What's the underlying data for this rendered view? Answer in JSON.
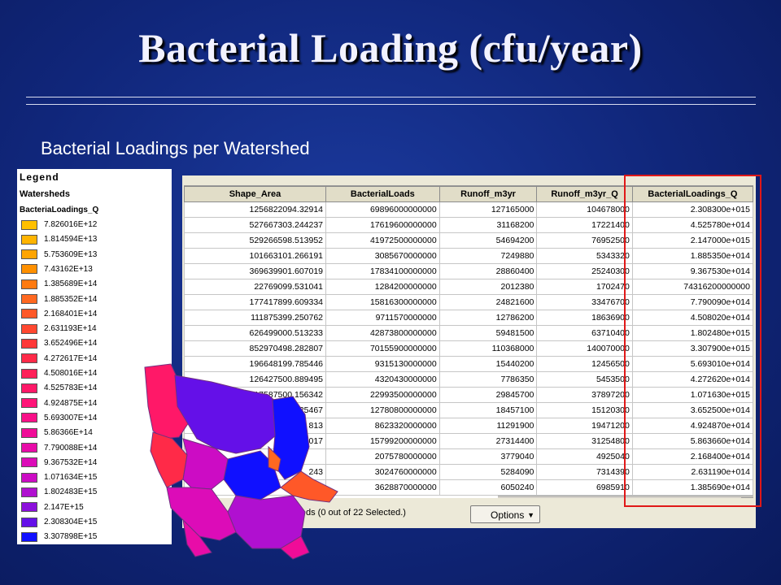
{
  "slide": {
    "title": "Bacterial Loading (cfu/year)",
    "subtitle": "Bacterial Loadings per Watershed"
  },
  "legend": {
    "title": "Legend",
    "layer": "Watersheds",
    "field": "BacteriaLoadings_Q",
    "items": [
      {
        "label": "7.826016E+12",
        "color": "#ffc000"
      },
      {
        "label": "1.814594E+13",
        "color": "#ffb400"
      },
      {
        "label": "5.753609E+13",
        "color": "#ffa400"
      },
      {
        "label": "7.43162E+13",
        "color": "#ff9000"
      },
      {
        "label": "1.385689E+14",
        "color": "#ff7a10"
      },
      {
        "label": "1.885352E+14",
        "color": "#ff6820"
      },
      {
        "label": "2.168401E+14",
        "color": "#ff5828"
      },
      {
        "label": "2.631193E+14",
        "color": "#ff4830"
      },
      {
        "label": "3.652496E+14",
        "color": "#ff3838"
      },
      {
        "label": "4.272617E+14",
        "color": "#ff2a48"
      },
      {
        "label": "4.508016E+14",
        "color": "#ff2058"
      },
      {
        "label": "4.525783E+14",
        "color": "#ff1868"
      },
      {
        "label": "4.924875E+14",
        "color": "#ff1478"
      },
      {
        "label": "5.693007E+14",
        "color": "#f81088"
      },
      {
        "label": "5.86366E+14",
        "color": "#f00c98"
      },
      {
        "label": "7.790088E+14",
        "color": "#e80ca8"
      },
      {
        "label": "9.367532E+14",
        "color": "#dc0cb8"
      },
      {
        "label": "1.071634E+15",
        "color": "#cc0cc4"
      },
      {
        "label": "1.802483E+15",
        "color": "#b010d0"
      },
      {
        "label": "2.147E+15",
        "color": "#8c10dc"
      },
      {
        "label": "2.308304E+15",
        "color": "#6410e8"
      },
      {
        "label": "3.307898E+15",
        "color": "#1010ff"
      }
    ]
  },
  "table": {
    "columns": [
      "Shape_Area",
      "BacterialLoads",
      "Runoff_m3yr",
      "Runoff_m3yr_Q",
      "BacterialLoadings_Q"
    ],
    "rows": [
      [
        "1256822094.32914",
        "69896000000000",
        "127165000",
        "104678000",
        "2.308300e+015"
      ],
      [
        "527667303.244237",
        "17619600000000",
        "31168200",
        "17221400",
        "4.525780e+014"
      ],
      [
        "529266598.513952",
        "41972500000000",
        "54694200",
        "76952500",
        "2.147000e+015"
      ],
      [
        "101663101.266191",
        "3085670000000",
        "7249880",
        "5343320",
        "1.885350e+014"
      ],
      [
        "369639901.607019",
        "17834100000000",
        "28860400",
        "25240300",
        "9.367530e+014"
      ],
      [
        "22769099.531041",
        "1284200000000",
        "2012380",
        "1702470",
        "74316200000000"
      ],
      [
        "177417899.609334",
        "15816300000000",
        "24821600",
        "33476700",
        "7.790090e+014"
      ],
      [
        "111875399.250762",
        "9711570000000",
        "12786200",
        "18636900",
        "4.508020e+014"
      ],
      [
        "626499000.513233",
        "42873800000000",
        "59481500",
        "63710400",
        "1.802480e+015"
      ],
      [
        "852970498.282807",
        "70155900000000",
        "110368000",
        "140070000",
        "3.307900e+015"
      ],
      [
        "196648199.785446",
        "9315130000000",
        "15440200",
        "12456500",
        "5.693010e+014"
      ],
      [
        "126427500.889495",
        "4320430000000",
        "7786350",
        "5453500",
        "4.272620e+014"
      ],
      [
        "317587500.156342",
        "22993500000000",
        "29845700",
        "37897200",
        "1.071630e+015"
      ],
      [
        "",
        "12780800000000",
        "18457100",
        "15120300",
        "3.652500e+014"
      ],
      [
        "",
        "8623320000000",
        "11291900",
        "19471200",
        "4.924870e+014"
      ],
      [
        "",
        "15799200000000",
        "27314400",
        "31254800",
        "5.863660e+014"
      ],
      [
        "",
        "2075780000000",
        "3779040",
        "4925040",
        "2.168400e+014"
      ],
      [
        "",
        "3024760000000",
        "5284090",
        "7314390",
        "2.631190e+014"
      ],
      [
        "",
        "3628870000000",
        "6050240",
        "6985910",
        "1.385690e+014"
      ]
    ],
    "partial_shape_area": [
      "...625467",
      "...813",
      "...017",
      "",
      "...243",
      ""
    ],
    "status": "ds  (0 out of 22 Selected.)",
    "options_label": "Options",
    "caret": "▼"
  }
}
